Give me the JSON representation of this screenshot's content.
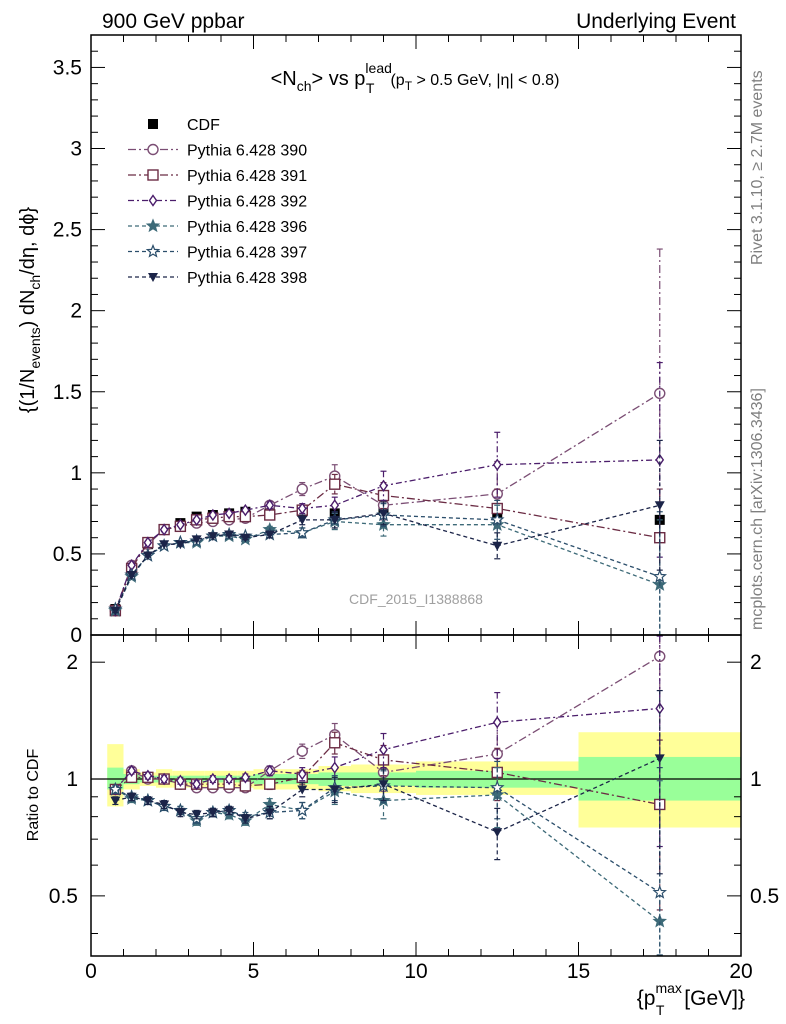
{
  "header": {
    "left": "900 GeV ppbar",
    "right": "Underlying Event"
  },
  "side_labels": {
    "top": "Rivet 3.1.10, ≥ 2.7M events",
    "bottom": "mcplots.cern.ch [arXiv:1306.3436]"
  },
  "watermark": "CDF_2015_I1388868",
  "colors": {
    "data": "#000000",
    "p390": "#7b4e74",
    "p391": "#6b2c44",
    "p392": "#4b1d6b",
    "p396": "#3d6a78",
    "p397": "#2b4e6b",
    "p398": "#1b2448",
    "band_stat": "#99ff99",
    "band_total": "#ffff99"
  },
  "chart_data": [
    {
      "type": "line",
      "title": "<N_ch> vs p_T^lead (p_T > 0.5 GeV, |η| < 0.8)",
      "title_parts": {
        "main": "<N",
        "main_sub": "ch",
        "vs": "> vs p",
        "lead_sup": "lead",
        "lead_sub": "T",
        "cuts_a": "(p",
        "cuts_sub": "T",
        "cuts_b": " > 0.5 GeV, |η| < 0.8)"
      },
      "ylabel": "{(1/N_events) dN_ch/dη, dϕ}",
      "ylabel_parts": {
        "a": "{(1/N",
        "sub1": "events",
        "b": ") dN",
        "sub2": "ch",
        "c": "/dη, dϕ}"
      },
      "xlim": [
        0,
        20
      ],
      "ylim": [
        0,
        3.7
      ],
      "yticks": [
        "0",
        "0.5",
        "1",
        "1.5",
        "2",
        "2.5",
        "3",
        "3.5"
      ],
      "legend_position": "top-left",
      "x": [
        0.75,
        1.25,
        1.75,
        2.25,
        2.75,
        3.25,
        3.75,
        4.25,
        4.75,
        5.5,
        6.5,
        7.5,
        9.0,
        12.5,
        17.5
      ],
      "data": {
        "name": "CDF",
        "y": [
          0.16,
          0.41,
          0.56,
          0.65,
          0.69,
          0.73,
          0.74,
          0.75,
          0.76,
          0.76,
          0.76,
          0.75,
          0.77,
          0.75,
          0.71
        ],
        "err": [
          0.01,
          0.01,
          0.01,
          0.01,
          0.01,
          0.01,
          0.01,
          0.01,
          0.01,
          0.02,
          0.02,
          0.03,
          0.04,
          0.05,
          0.07
        ]
      },
      "series": [
        {
          "name": "Pythia 6.428 390",
          "color_key": "p390",
          "marker": "open-circle",
          "dash": "8,3,2,3",
          "y": [
            0.15,
            0.43,
            0.56,
            0.65,
            0.67,
            0.69,
            0.7,
            0.71,
            0.72,
            0.8,
            0.9,
            0.98,
            0.8,
            0.87,
            1.49
          ],
          "err": [
            0.01,
            0.01,
            0.01,
            0.01,
            0.01,
            0.01,
            0.01,
            0.01,
            0.01,
            0.02,
            0.04,
            0.07,
            0.09,
            0.2,
            0.89
          ]
        },
        {
          "name": "Pythia 6.428 391",
          "color_key": "p391",
          "marker": "open-square",
          "dash": "8,3,2,3",
          "y": [
            0.15,
            0.41,
            0.57,
            0.65,
            0.67,
            0.71,
            0.72,
            0.73,
            0.73,
            0.74,
            0.77,
            0.93,
            0.86,
            0.78,
            0.6
          ],
          "err": [
            0.01,
            0.01,
            0.01,
            0.01,
            0.01,
            0.01,
            0.01,
            0.01,
            0.01,
            0.02,
            0.03,
            0.06,
            0.08,
            0.12,
            0.3
          ]
        },
        {
          "name": "Pythia 6.428 392",
          "color_key": "p392",
          "marker": "open-diamond",
          "dash": "6,3,2,3",
          "y": [
            0.15,
            0.43,
            0.57,
            0.65,
            0.68,
            0.71,
            0.74,
            0.75,
            0.77,
            0.8,
            0.78,
            0.8,
            0.92,
            1.05,
            1.08
          ],
          "err": [
            0.01,
            0.01,
            0.01,
            0.01,
            0.01,
            0.01,
            0.01,
            0.01,
            0.01,
            0.02,
            0.03,
            0.05,
            0.09,
            0.2,
            0.6
          ]
        },
        {
          "name": "Pythia 6.428 396",
          "color_key": "p396",
          "marker": "star-filled",
          "dash": "4,3",
          "y": [
            0.15,
            0.36,
            0.49,
            0.55,
            0.57,
            0.57,
            0.61,
            0.61,
            0.59,
            0.65,
            0.63,
            0.7,
            0.68,
            0.68,
            0.31
          ],
          "err": [
            0.01,
            0.01,
            0.01,
            0.01,
            0.01,
            0.01,
            0.01,
            0.01,
            0.01,
            0.02,
            0.03,
            0.05,
            0.07,
            0.12,
            0.4
          ]
        },
        {
          "name": "Pythia 6.428 397",
          "color_key": "p397",
          "marker": "star-open",
          "dash": "4,3",
          "y": [
            0.16,
            0.37,
            0.49,
            0.55,
            0.57,
            0.58,
            0.61,
            0.62,
            0.61,
            0.62,
            0.63,
            0.71,
            0.74,
            0.71,
            0.36
          ],
          "err": [
            0.01,
            0.01,
            0.01,
            0.01,
            0.01,
            0.01,
            0.01,
            0.01,
            0.01,
            0.02,
            0.03,
            0.05,
            0.07,
            0.12,
            0.4
          ]
        },
        {
          "name": "Pythia 6.428 398",
          "color_key": "p398",
          "marker": "triangle-down",
          "dash": "4,3",
          "y": [
            0.15,
            0.37,
            0.49,
            0.56,
            0.56,
            0.59,
            0.61,
            0.62,
            0.6,
            0.62,
            0.71,
            0.71,
            0.75,
            0.55,
            0.8
          ],
          "err": [
            0.01,
            0.01,
            0.01,
            0.01,
            0.01,
            0.01,
            0.01,
            0.01,
            0.01,
            0.02,
            0.03,
            0.05,
            0.07,
            0.08,
            0.4
          ]
        }
      ]
    },
    {
      "type": "line",
      "ylabel": "Ratio to CDF",
      "xlabel": "{p_T^max [GeV]}",
      "xlabel_parts": {
        "a": "{p",
        "sub": "T",
        "sup": "max",
        "b": " [GeV]}"
      },
      "xlim": [
        0,
        20
      ],
      "ylim": [
        0.35,
        2.35
      ],
      "log_y": true,
      "xticks": [
        "0",
        "5",
        "10",
        "15",
        "20"
      ],
      "yticks": [
        "0.5",
        "1",
        "2"
      ],
      "bands": [
        {
          "x0": 0.5,
          "x1": 1.0,
          "stat": [
            0.94,
            1.07
          ],
          "total": [
            0.85,
            1.23
          ]
        },
        {
          "x0": 1.0,
          "x1": 1.5,
          "stat": [
            0.97,
            1.03
          ],
          "total": [
            0.94,
            1.06
          ]
        },
        {
          "x0": 1.5,
          "x1": 2.0,
          "stat": [
            0.98,
            1.02
          ],
          "total": [
            0.96,
            1.04
          ]
        },
        {
          "x0": 2.0,
          "x1": 2.5,
          "stat": [
            0.98,
            1.02
          ],
          "total": [
            0.95,
            1.06
          ]
        },
        {
          "x0": 2.5,
          "x1": 3.0,
          "stat": [
            0.98,
            1.02
          ],
          "total": [
            0.95,
            1.05
          ]
        },
        {
          "x0": 3.0,
          "x1": 3.5,
          "stat": [
            0.98,
            1.02
          ],
          "total": [
            0.95,
            1.05
          ]
        },
        {
          "x0": 3.5,
          "x1": 4.0,
          "stat": [
            0.98,
            1.02
          ],
          "total": [
            0.95,
            1.05
          ]
        },
        {
          "x0": 4.0,
          "x1": 4.5,
          "stat": [
            0.98,
            1.02
          ],
          "total": [
            0.95,
            1.05
          ]
        },
        {
          "x0": 4.5,
          "x1": 5.0,
          "stat": [
            0.98,
            1.02
          ],
          "total": [
            0.95,
            1.05
          ]
        },
        {
          "x0": 5.0,
          "x1": 6.0,
          "stat": [
            0.97,
            1.03
          ],
          "total": [
            0.94,
            1.06
          ]
        },
        {
          "x0": 6.0,
          "x1": 7.0,
          "stat": [
            0.97,
            1.03
          ],
          "total": [
            0.94,
            1.06
          ]
        },
        {
          "x0": 7.0,
          "x1": 8.0,
          "stat": [
            0.96,
            1.04
          ],
          "total": [
            0.93,
            1.08
          ]
        },
        {
          "x0": 8.0,
          "x1": 10.0,
          "stat": [
            0.96,
            1.04
          ],
          "total": [
            0.92,
            1.09
          ]
        },
        {
          "x0": 10.0,
          "x1": 15.0,
          "stat": [
            0.95,
            1.05
          ],
          "total": [
            0.91,
            1.11
          ]
        },
        {
          "x0": 15.0,
          "x1": 20.0,
          "stat": [
            0.88,
            1.14
          ],
          "total": [
            0.75,
            1.32
          ]
        }
      ],
      "series": [
        {
          "name": "Pythia 6.428 390",
          "color_key": "p390",
          "marker": "open-circle",
          "dash": "8,3,2,3",
          "y": [
            0.94,
            1.05,
            1.0,
            1.0,
            0.97,
            0.95,
            0.95,
            0.95,
            0.95,
            1.05,
            1.18,
            1.3,
            1.04,
            1.16,
            2.07
          ],
          "err": [
            0.02,
            0.02,
            0.02,
            0.02,
            0.02,
            0.02,
            0.02,
            0.02,
            0.02,
            0.03,
            0.05,
            0.09,
            0.11,
            0.25,
            1.2
          ]
        },
        {
          "name": "Pythia 6.428 391",
          "color_key": "p391",
          "marker": "open-square",
          "dash": "8,3,2,3",
          "y": [
            0.94,
            1.01,
            1.01,
            1.0,
            0.97,
            0.97,
            0.97,
            0.97,
            0.96,
            0.97,
            1.01,
            1.24,
            1.12,
            1.04,
            0.86
          ],
          "err": [
            0.02,
            0.02,
            0.02,
            0.02,
            0.02,
            0.02,
            0.02,
            0.02,
            0.02,
            0.03,
            0.04,
            0.08,
            0.1,
            0.16,
            0.4
          ]
        },
        {
          "name": "Pythia 6.428 392",
          "color_key": "p392",
          "marker": "open-diamond",
          "dash": "6,3,2,3",
          "y": [
            0.94,
            1.05,
            1.02,
            1.0,
            0.99,
            0.97,
            1.0,
            1.0,
            1.01,
            1.05,
            1.03,
            1.07,
            1.19,
            1.4,
            1.52
          ],
          "err": [
            0.02,
            0.02,
            0.02,
            0.02,
            0.02,
            0.02,
            0.02,
            0.02,
            0.02,
            0.03,
            0.04,
            0.07,
            0.12,
            0.27,
            0.85
          ]
        },
        {
          "name": "Pythia 6.428 396",
          "color_key": "p396",
          "marker": "star-filled",
          "dash": "4,3",
          "y": [
            0.94,
            0.89,
            0.88,
            0.85,
            0.83,
            0.78,
            0.82,
            0.81,
            0.78,
            0.86,
            0.83,
            0.93,
            0.88,
            0.91,
            0.43
          ],
          "err": [
            0.02,
            0.02,
            0.02,
            0.02,
            0.02,
            0.02,
            0.02,
            0.02,
            0.02,
            0.03,
            0.04,
            0.07,
            0.09,
            0.16,
            0.56
          ]
        },
        {
          "name": "Pythia 6.428 397",
          "color_key": "p397",
          "marker": "star-open",
          "dash": "4,3",
          "y": [
            0.94,
            0.9,
            0.88,
            0.85,
            0.83,
            0.79,
            0.82,
            0.83,
            0.8,
            0.82,
            0.83,
            0.95,
            0.96,
            0.95,
            0.51
          ],
          "err": [
            0.02,
            0.02,
            0.02,
            0.02,
            0.02,
            0.02,
            0.02,
            0.02,
            0.02,
            0.03,
            0.04,
            0.07,
            0.09,
            0.16,
            0.56
          ]
        },
        {
          "name": "Pythia 6.428 398",
          "color_key": "p398",
          "marker": "triangle-down",
          "dash": "4,3",
          "y": [
            0.88,
            0.9,
            0.88,
            0.86,
            0.82,
            0.81,
            0.82,
            0.83,
            0.79,
            0.82,
            0.94,
            0.94,
            0.97,
            0.73,
            1.13
          ],
          "err": [
            0.02,
            0.02,
            0.02,
            0.02,
            0.02,
            0.02,
            0.02,
            0.02,
            0.02,
            0.03,
            0.04,
            0.07,
            0.09,
            0.11,
            0.56
          ]
        }
      ]
    }
  ]
}
